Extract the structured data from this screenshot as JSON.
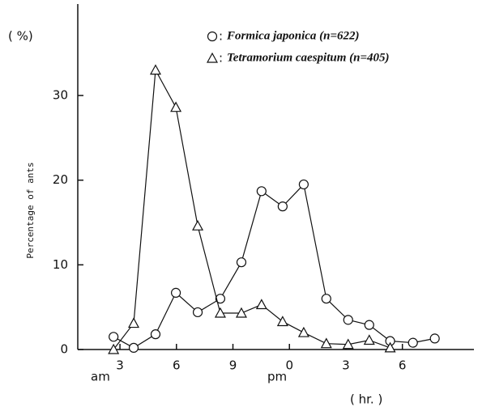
{
  "chart_data": {
    "type": "line",
    "y_label": "Percentage of ants",
    "annotations": [
      "( %)",
      "am",
      "pm",
      "( hr. )"
    ],
    "x": [
      2.66,
      3.73,
      4.89,
      5.97,
      7.13,
      8.33,
      9.45,
      10.52,
      11.64,
      12.76,
      13.96,
      15.12,
      16.24,
      17.35,
      18.56,
      19.72
    ],
    "series": [
      {
        "name": "Formica japonica (n=622)",
        "marker": "circle",
        "color": "#111111",
        "values": [
          1.5,
          0.2,
          1.8,
          6.7,
          4.4,
          6.0,
          10.3,
          18.7,
          16.9,
          19.5,
          6.0,
          3.5,
          2.9,
          1.0,
          0.8,
          1.3
        ]
      },
      {
        "name": "Tetramorium caespitum (n=405)",
        "marker": "triangle",
        "color": "#111111",
        "values": [
          0,
          3.1,
          33,
          28.6,
          14.6,
          4.3,
          4.3,
          5.3,
          3.3,
          2.0,
          0.7,
          0.6,
          1.1,
          0.2,
          null,
          null
        ]
      }
    ],
    "xlim": [
      0.76,
      21.8
    ],
    "xticks": [
      3,
      6,
      9,
      {
        "value": 12,
        "label": "0"
      },
      {
        "value": 15,
        "label": "3"
      },
      {
        "value": 18,
        "label": "6"
      }
    ],
    "ylim": [
      0,
      40.8
    ],
    "yticks": [
      0,
      10,
      20,
      30
    ],
    "grid": false
  }
}
